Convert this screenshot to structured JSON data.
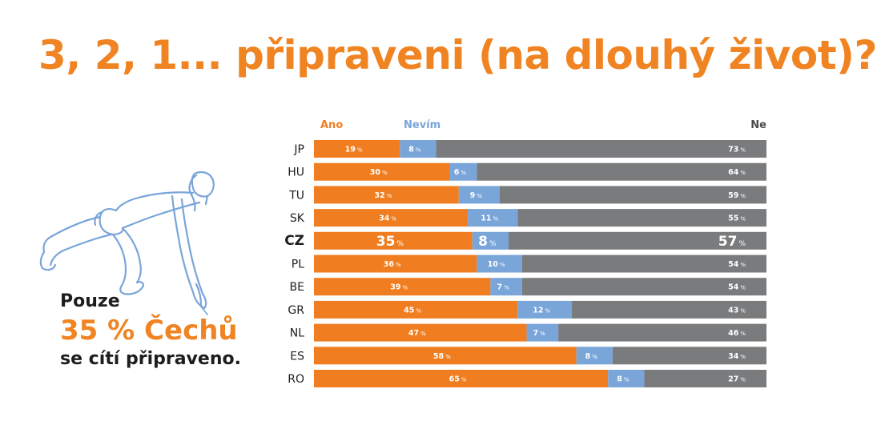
{
  "title": "3, 2, 1... připraveni (na dlouhý život)?",
  "caption": {
    "line1": "Pouze",
    "line2": "35 % Čechů",
    "line3": "se cítí připraveno."
  },
  "figure_icon": "runner-in-starting-position-icon",
  "colors": {
    "ano": "#f07e21",
    "nevim": "#7aa5d9",
    "ne": "#7a7b7d",
    "title": "#f08422",
    "background": "#ffffff"
  },
  "chart_data": {
    "type": "bar",
    "orientation": "horizontal",
    "stacked": true,
    "unit": "%",
    "categories": [
      "JP",
      "HU",
      "TU",
      "SK",
      "CZ",
      "PL",
      "BE",
      "GR",
      "NL",
      "ES",
      "RO"
    ],
    "highlighted_category": "CZ",
    "series": [
      {
        "name": "Ano",
        "values": [
          19,
          30,
          32,
          34,
          35,
          36,
          39,
          45,
          47,
          58,
          65
        ]
      },
      {
        "name": "Nevím",
        "values": [
          8,
          6,
          9,
          11,
          8,
          10,
          7,
          12,
          7,
          8,
          8
        ]
      },
      {
        "name": "Ne",
        "values": [
          73,
          64,
          59,
          55,
          57,
          54,
          54,
          43,
          46,
          34,
          27
        ]
      }
    ],
    "legend_position": "top",
    "grid": false
  }
}
